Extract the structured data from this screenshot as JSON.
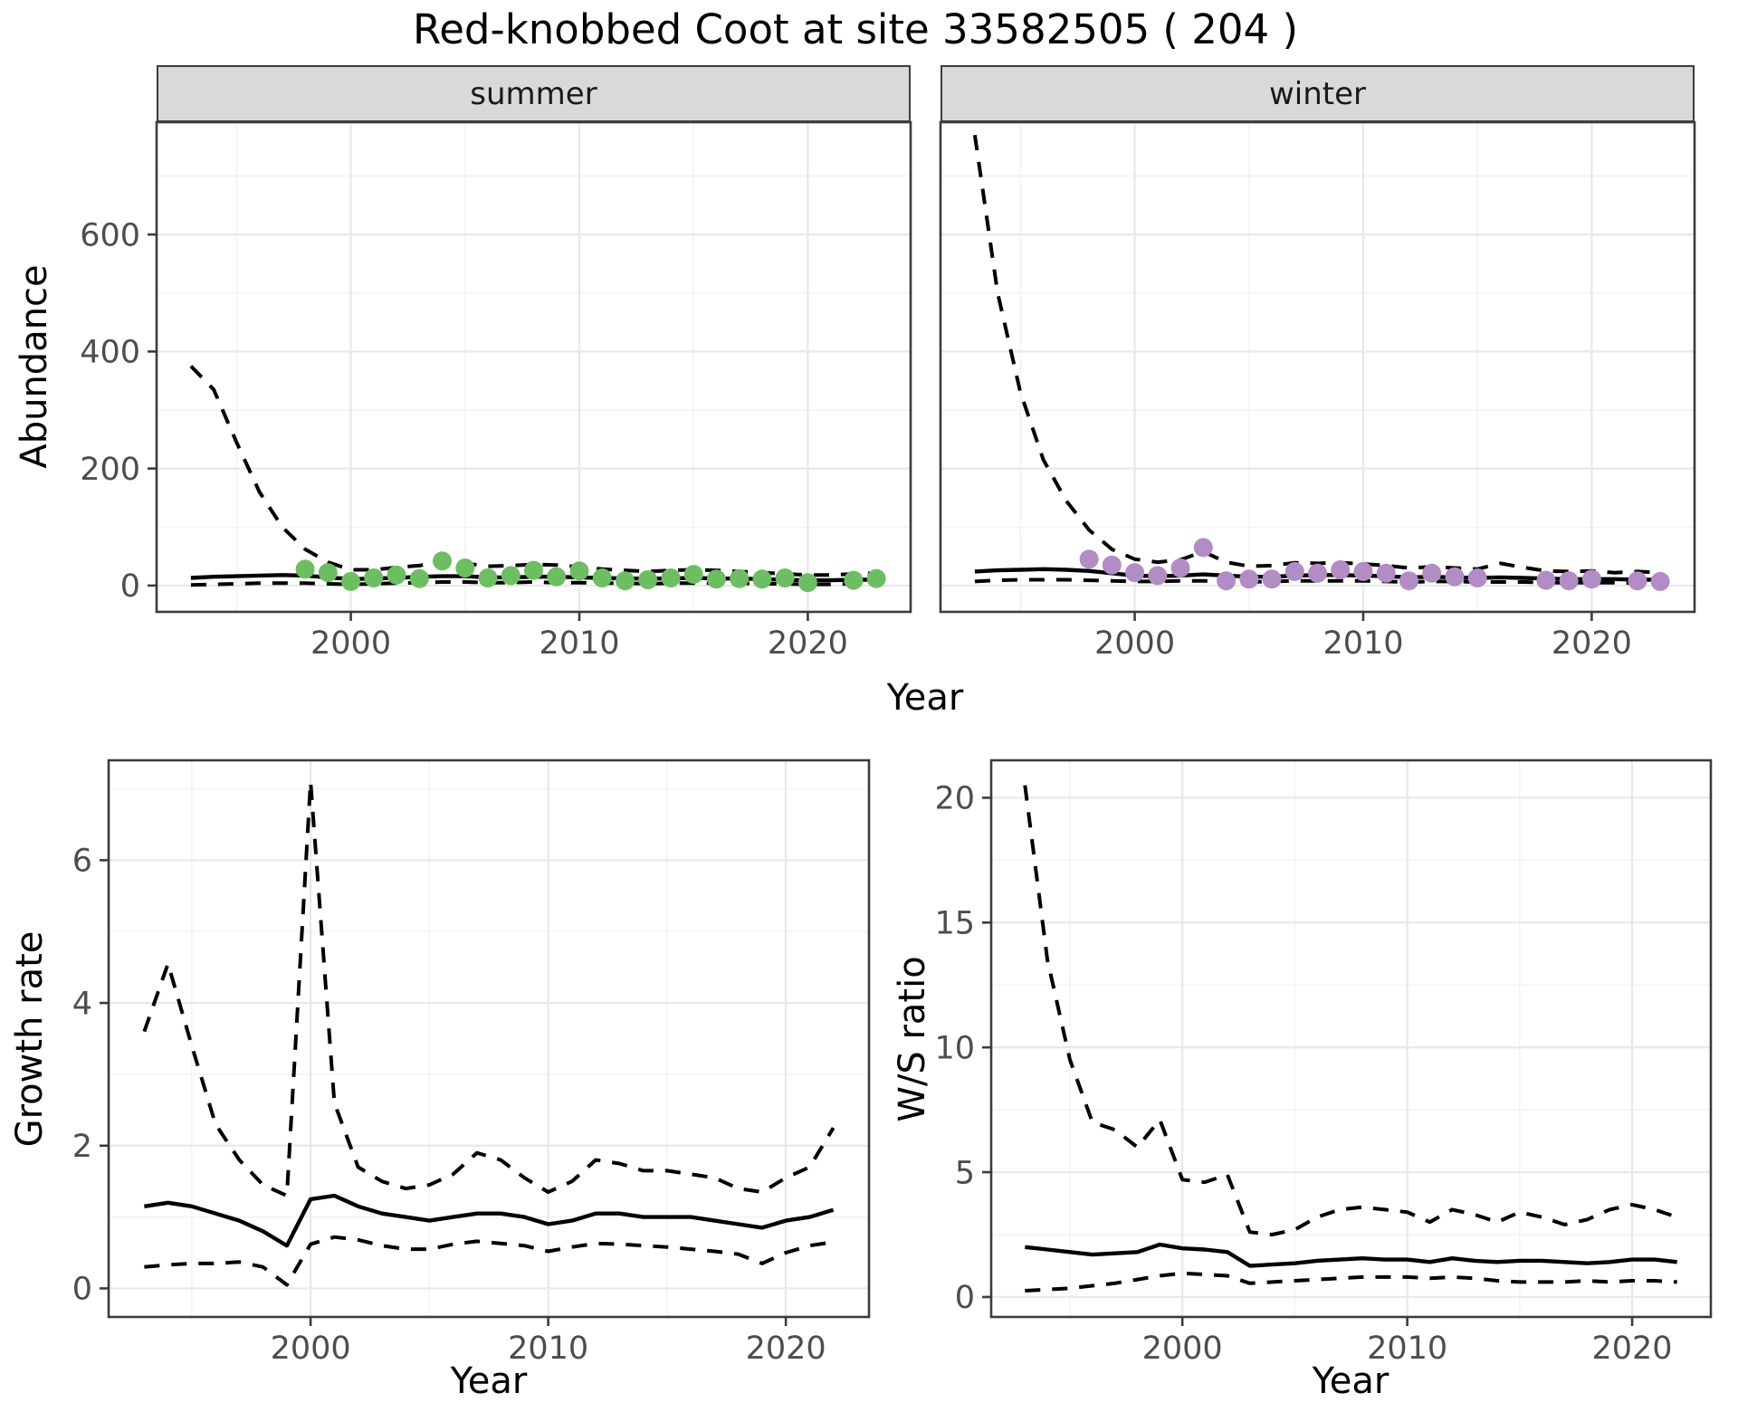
{
  "title": "Red-knobbed Coot at site 33582505 ( 204 )",
  "axis_titles": {
    "abundance": "Abundance",
    "year": "Year",
    "growth": "Growth rate",
    "ws": "W/S ratio"
  },
  "facets": [
    {
      "label": "summer"
    },
    {
      "label": "winter"
    }
  ],
  "colors": {
    "summer_point": "#6dbe63",
    "winter_point": "#b28cc4",
    "line": "#000000",
    "grid_major": "#e8e8e8",
    "grid_minor": "#f2f2f2",
    "panel_border": "#3c3c3c",
    "tick_label": "#4d4d4d",
    "strip_fill": "#d9d9d9",
    "background": "#ffffff"
  },
  "chart_data": [
    {
      "id": "abundance-summer",
      "type": "line",
      "facet": "summer",
      "ylabel": "Abundance",
      "xlabel": "Year",
      "xlim": [
        1991.5,
        2024.5
      ],
      "ylim": [
        -45,
        792
      ],
      "x_ticks": [
        2000,
        2010,
        2020
      ],
      "x_minor": [
        1995,
        2005,
        2015
      ],
      "y_ticks": [
        0,
        200,
        400,
        600
      ],
      "y_minor": [
        100,
        300,
        500,
        700
      ],
      "grid": true,
      "legend_position": "none",
      "series": [
        {
          "name": "model median",
          "style": "solid",
          "x": [
            1993,
            1994,
            1995,
            1996,
            1997,
            1998,
            1999,
            2000,
            2001,
            2002,
            2003,
            2004,
            2005,
            2006,
            2007,
            2008,
            2009,
            2010,
            2011,
            2012,
            2013,
            2014,
            2015,
            2016,
            2017,
            2018,
            2019,
            2020,
            2021,
            2022,
            2023
          ],
          "y": [
            13,
            15,
            16,
            17,
            18,
            17,
            14,
            11,
            12,
            13,
            15,
            16,
            16,
            14,
            14,
            15,
            15,
            14,
            13,
            12,
            12,
            12,
            13,
            12,
            12,
            11,
            10,
            9,
            9,
            10,
            10
          ]
        },
        {
          "name": "upper 95% CI",
          "style": "dashed",
          "x": [
            1993,
            1994,
            1995,
            1996,
            1997,
            1998,
            1999,
            2000,
            2001,
            2002,
            2003,
            2004,
            2005,
            2006,
            2007,
            2008,
            2009,
            2010,
            2011,
            2012,
            2013,
            2014,
            2015,
            2016,
            2017,
            2018,
            2019,
            2020,
            2021,
            2022,
            2023
          ],
          "y": [
            375,
            335,
            245,
            160,
            100,
            62,
            40,
            27,
            27,
            31,
            34,
            42,
            38,
            33,
            34,
            36,
            35,
            32,
            28,
            26,
            24,
            26,
            27,
            26,
            24,
            22,
            20,
            18,
            18,
            20,
            21
          ]
        },
        {
          "name": "lower 95% CI",
          "style": "dashed",
          "x": [
            1993,
            1994,
            1995,
            1996,
            1997,
            1998,
            1999,
            2000,
            2001,
            2002,
            2003,
            2004,
            2005,
            2006,
            2007,
            2008,
            2009,
            2010,
            2011,
            2012,
            2013,
            2014,
            2015,
            2016,
            2017,
            2018,
            2019,
            2020,
            2021,
            2022,
            2023
          ],
          "y": [
            1,
            2,
            3,
            4,
            4,
            4,
            3,
            2,
            3,
            4,
            5,
            6,
            6,
            5,
            5,
            6,
            5,
            5,
            4,
            4,
            3,
            4,
            4,
            4,
            4,
            3,
            3,
            2,
            2,
            3,
            3
          ]
        }
      ],
      "points": {
        "name": "observed summer counts",
        "color_key": "summer_point",
        "x": [
          1998,
          1999,
          2000,
          2001,
          2002,
          2003,
          2004,
          2005,
          2006,
          2007,
          2008,
          2009,
          2010,
          2011,
          2012,
          2013,
          2014,
          2015,
          2016,
          2017,
          2018,
          2019,
          2020,
          2022,
          2023
        ],
        "y": [
          28,
          22,
          7,
          13,
          18,
          12,
          42,
          30,
          13,
          17,
          26,
          15,
          25,
          13,
          8,
          10,
          13,
          19,
          11,
          12,
          11,
          13,
          5,
          9,
          12
        ]
      }
    },
    {
      "id": "abundance-winter",
      "type": "line",
      "facet": "winter",
      "ylabel": "Abundance",
      "xlabel": "Year",
      "xlim": [
        1991.5,
        2024.5
      ],
      "ylim": [
        -45,
        792
      ],
      "x_ticks": [
        2000,
        2010,
        2020
      ],
      "x_minor": [
        1995,
        2005,
        2015
      ],
      "y_ticks": [
        0,
        200,
        400,
        600
      ],
      "y_minor": [
        100,
        300,
        500,
        700
      ],
      "grid": true,
      "legend_position": "none",
      "series": [
        {
          "name": "model median",
          "style": "solid",
          "x": [
            1993,
            1994,
            1995,
            1996,
            1997,
            1998,
            1999,
            2000,
            2001,
            2002,
            2003,
            2004,
            2005,
            2006,
            2007,
            2008,
            2009,
            2010,
            2011,
            2012,
            2013,
            2014,
            2015,
            2016,
            2017,
            2018,
            2019,
            2020,
            2021,
            2022,
            2023
          ],
          "y": [
            24,
            26,
            27,
            28,
            27,
            25,
            21,
            17,
            16,
            17,
            19,
            17,
            15,
            15,
            17,
            18,
            18,
            17,
            16,
            14,
            15,
            14,
            13,
            14,
            13,
            12,
            11,
            11,
            11,
            10,
            10
          ]
        },
        {
          "name": "upper 95% CI",
          "style": "dashed",
          "x": [
            1993,
            1994,
            1995,
            1996,
            1997,
            1998,
            1999,
            2000,
            2001,
            2002,
            2003,
            2004,
            2005,
            2006,
            2007,
            2008,
            2009,
            2010,
            2011,
            2012,
            2013,
            2014,
            2015,
            2016,
            2017,
            2018,
            2019,
            2020,
            2021,
            2022,
            2023
          ],
          "y": [
            770,
            500,
            330,
            215,
            145,
            95,
            62,
            45,
            40,
            44,
            58,
            40,
            33,
            34,
            39,
            38,
            39,
            37,
            34,
            30,
            32,
            30,
            28,
            38,
            31,
            25,
            24,
            25,
            22,
            24,
            22
          ]
        },
        {
          "name": "lower 95% CI",
          "style": "dashed",
          "x": [
            1993,
            1994,
            1995,
            1996,
            1997,
            1998,
            1999,
            2000,
            2001,
            2002,
            2003,
            2004,
            2005,
            2006,
            2007,
            2008,
            2009,
            2010,
            2011,
            2012,
            2013,
            2014,
            2015,
            2016,
            2017,
            2018,
            2019,
            2020,
            2021,
            2022,
            2023
          ],
          "y": [
            7,
            9,
            10,
            10,
            10,
            9,
            8,
            7,
            7,
            8,
            8,
            6,
            6,
            7,
            8,
            8,
            8,
            8,
            7,
            6,
            7,
            7,
            6,
            6,
            6,
            5,
            5,
            5,
            5,
            4,
            4
          ]
        }
      ],
      "points": {
        "name": "observed winter counts",
        "color_key": "winter_point",
        "x": [
          1998,
          1999,
          2000,
          2001,
          2002,
          2003,
          2004,
          2005,
          2006,
          2007,
          2008,
          2009,
          2010,
          2011,
          2012,
          2013,
          2014,
          2015,
          2018,
          2019,
          2020,
          2022,
          2023
        ],
        "y": [
          45,
          35,
          22,
          17,
          30,
          65,
          8,
          11,
          11,
          24,
          21,
          27,
          24,
          21,
          8,
          21,
          15,
          13,
          9,
          8,
          11,
          8,
          7
        ]
      }
    },
    {
      "id": "growth-rate",
      "type": "line",
      "ylabel": "Growth rate",
      "xlabel": "Year",
      "xlim": [
        1991.5,
        2023.5
      ],
      "ylim": [
        -0.4,
        7.4
      ],
      "x_ticks": [
        2000,
        2010,
        2020
      ],
      "x_minor": [
        1995,
        2005,
        2015
      ],
      "y_ticks": [
        0,
        2,
        4,
        6
      ],
      "y_minor": [
        1,
        3,
        5,
        7
      ],
      "grid": true,
      "legend_position": "none",
      "series": [
        {
          "name": "growth rate median",
          "style": "solid",
          "x": [
            1993,
            1994,
            1995,
            1996,
            1997,
            1998,
            1999,
            2000,
            2001,
            2002,
            2003,
            2004,
            2005,
            2006,
            2007,
            2008,
            2009,
            2010,
            2011,
            2012,
            2013,
            2014,
            2015,
            2016,
            2017,
            2018,
            2019,
            2020,
            2021,
            2022
          ],
          "y": [
            1.15,
            1.2,
            1.15,
            1.05,
            0.95,
            0.8,
            0.6,
            1.25,
            1.3,
            1.15,
            1.05,
            1.0,
            0.95,
            1.0,
            1.05,
            1.05,
            1.0,
            0.9,
            0.95,
            1.05,
            1.05,
            1.0,
            1.0,
            1.0,
            0.95,
            0.9,
            0.85,
            0.95,
            1.0,
            1.1
          ]
        },
        {
          "name": "upper 95% CI",
          "style": "dashed",
          "x": [
            1993,
            1994,
            1995,
            1996,
            1997,
            1998,
            1999,
            2000,
            2001,
            2002,
            2003,
            2004,
            2005,
            2006,
            2007,
            2008,
            2009,
            2010,
            2011,
            2012,
            2013,
            2014,
            2015,
            2016,
            2017,
            2018,
            2019,
            2020,
            2021,
            2022
          ],
          "y": [
            3.6,
            4.55,
            3.4,
            2.3,
            1.8,
            1.45,
            1.3,
            7.1,
            2.6,
            1.7,
            1.5,
            1.4,
            1.45,
            1.6,
            1.9,
            1.8,
            1.55,
            1.35,
            1.5,
            1.8,
            1.75,
            1.65,
            1.65,
            1.6,
            1.55,
            1.4,
            1.35,
            1.55,
            1.7,
            2.25
          ]
        },
        {
          "name": "lower 95% CI",
          "style": "dashed",
          "x": [
            1993,
            1994,
            1995,
            1996,
            1997,
            1998,
            1999,
            2000,
            2001,
            2002,
            2003,
            2004,
            2005,
            2006,
            2007,
            2008,
            2009,
            2010,
            2011,
            2012,
            2013,
            2014,
            2015,
            2016,
            2017,
            2018,
            2019,
            2020,
            2021,
            2022
          ],
          "y": [
            0.3,
            0.33,
            0.35,
            0.35,
            0.37,
            0.3,
            0.05,
            0.62,
            0.72,
            0.68,
            0.6,
            0.55,
            0.55,
            0.62,
            0.66,
            0.63,
            0.6,
            0.52,
            0.58,
            0.63,
            0.62,
            0.6,
            0.58,
            0.55,
            0.52,
            0.48,
            0.35,
            0.5,
            0.6,
            0.65
          ]
        }
      ]
    },
    {
      "id": "ws-ratio",
      "type": "line",
      "ylabel": "W/S ratio",
      "xlabel": "Year",
      "xlim": [
        1991.5,
        2023.5
      ],
      "ylim": [
        -0.8,
        21.5
      ],
      "x_ticks": [
        2000,
        2010,
        2020
      ],
      "x_minor": [
        1995,
        2005,
        2015
      ],
      "y_ticks": [
        0,
        5,
        10,
        15,
        20
      ],
      "y_minor": [
        2.5,
        7.5,
        12.5,
        17.5
      ],
      "grid": true,
      "legend_position": "none",
      "series": [
        {
          "name": "W/S ratio median",
          "style": "solid",
          "x": [
            1993,
            1994,
            1995,
            1996,
            1997,
            1998,
            1999,
            2000,
            2001,
            2002,
            2003,
            2004,
            2005,
            2006,
            2007,
            2008,
            2009,
            2010,
            2011,
            2012,
            2013,
            2014,
            2015,
            2016,
            2017,
            2018,
            2019,
            2020,
            2021,
            2022
          ],
          "y": [
            2.0,
            1.9,
            1.8,
            1.7,
            1.75,
            1.8,
            2.1,
            1.95,
            1.9,
            1.8,
            1.25,
            1.3,
            1.35,
            1.45,
            1.5,
            1.55,
            1.5,
            1.5,
            1.4,
            1.55,
            1.45,
            1.4,
            1.45,
            1.45,
            1.4,
            1.35,
            1.4,
            1.5,
            1.5,
            1.4
          ]
        },
        {
          "name": "upper 95% CI",
          "style": "dashed",
          "x": [
            1993,
            1994,
            1995,
            1996,
            1997,
            1998,
            1999,
            2000,
            2001,
            2002,
            2003,
            2004,
            2005,
            2006,
            2007,
            2008,
            2009,
            2010,
            2011,
            2012,
            2013,
            2014,
            2015,
            2016,
            2017,
            2018,
            2019,
            2020,
            2021,
            2022
          ],
          "y": [
            20.5,
            13.5,
            9.5,
            7.0,
            6.7,
            6.0,
            7.1,
            4.7,
            4.6,
            4.9,
            2.6,
            2.5,
            2.7,
            3.2,
            3.5,
            3.6,
            3.5,
            3.4,
            3.0,
            3.5,
            3.3,
            3.0,
            3.4,
            3.2,
            2.9,
            3.1,
            3.5,
            3.7,
            3.5,
            3.2
          ]
        },
        {
          "name": "lower 95% CI",
          "style": "dashed",
          "x": [
            1993,
            1994,
            1995,
            1996,
            1997,
            1998,
            1999,
            2000,
            2001,
            2002,
            2003,
            2004,
            2005,
            2006,
            2007,
            2008,
            2009,
            2010,
            2011,
            2012,
            2013,
            2014,
            2015,
            2016,
            2017,
            2018,
            2019,
            2020,
            2021,
            2022
          ],
          "y": [
            0.25,
            0.3,
            0.35,
            0.45,
            0.55,
            0.7,
            0.85,
            0.95,
            0.9,
            0.85,
            0.55,
            0.6,
            0.65,
            0.7,
            0.75,
            0.8,
            0.8,
            0.8,
            0.75,
            0.8,
            0.75,
            0.65,
            0.6,
            0.6,
            0.6,
            0.65,
            0.6,
            0.65,
            0.65,
            0.6
          ]
        }
      ]
    }
  ]
}
